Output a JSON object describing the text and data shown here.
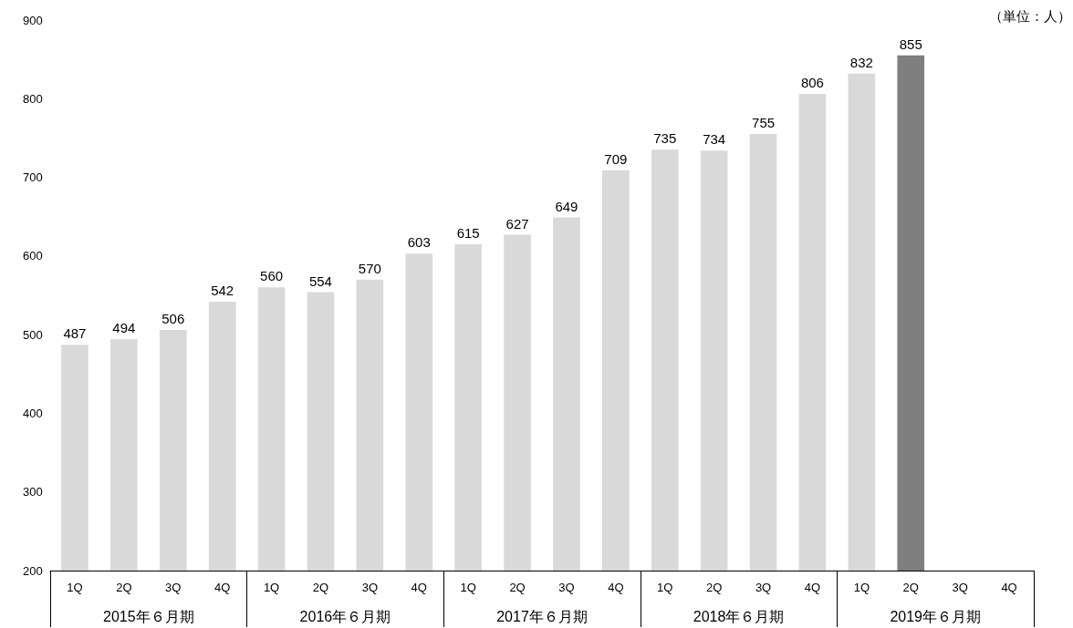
{
  "chart_data": {
    "type": "bar",
    "categories": [
      "1Q",
      "2Q",
      "3Q",
      "4Q",
      "1Q",
      "2Q",
      "3Q",
      "4Q",
      "1Q",
      "2Q",
      "3Q",
      "4Q",
      "1Q",
      "2Q",
      "3Q",
      "4Q",
      "1Q",
      "2Q",
      "3Q",
      "4Q"
    ],
    "values": [
      487,
      494,
      506,
      542,
      560,
      554,
      570,
      603,
      615,
      627,
      649,
      709,
      735,
      734,
      755,
      806,
      832,
      855,
      null,
      null
    ],
    "colors": [
      "#d9d9d9",
      "#d9d9d9",
      "#d9d9d9",
      "#d9d9d9",
      "#d9d9d9",
      "#d9d9d9",
      "#d9d9d9",
      "#d9d9d9",
      "#d9d9d9",
      "#d9d9d9",
      "#d9d9d9",
      "#d9d9d9",
      "#d9d9d9",
      "#d9d9d9",
      "#d9d9d9",
      "#d9d9d9",
      "#d9d9d9",
      "#7f7f7f",
      "#d9d9d9",
      "#d9d9d9"
    ],
    "ylim": [
      200,
      900
    ],
    "yticks": [
      200,
      300,
      400,
      500,
      600,
      700,
      800,
      900
    ],
    "data_labels": true,
    "grid": false,
    "annotations": [
      "（単位：人）",
      "2015年６月期",
      "2016年６月期",
      "2017年６月期",
      "2018年６月期",
      "2019年６月期"
    ]
  }
}
